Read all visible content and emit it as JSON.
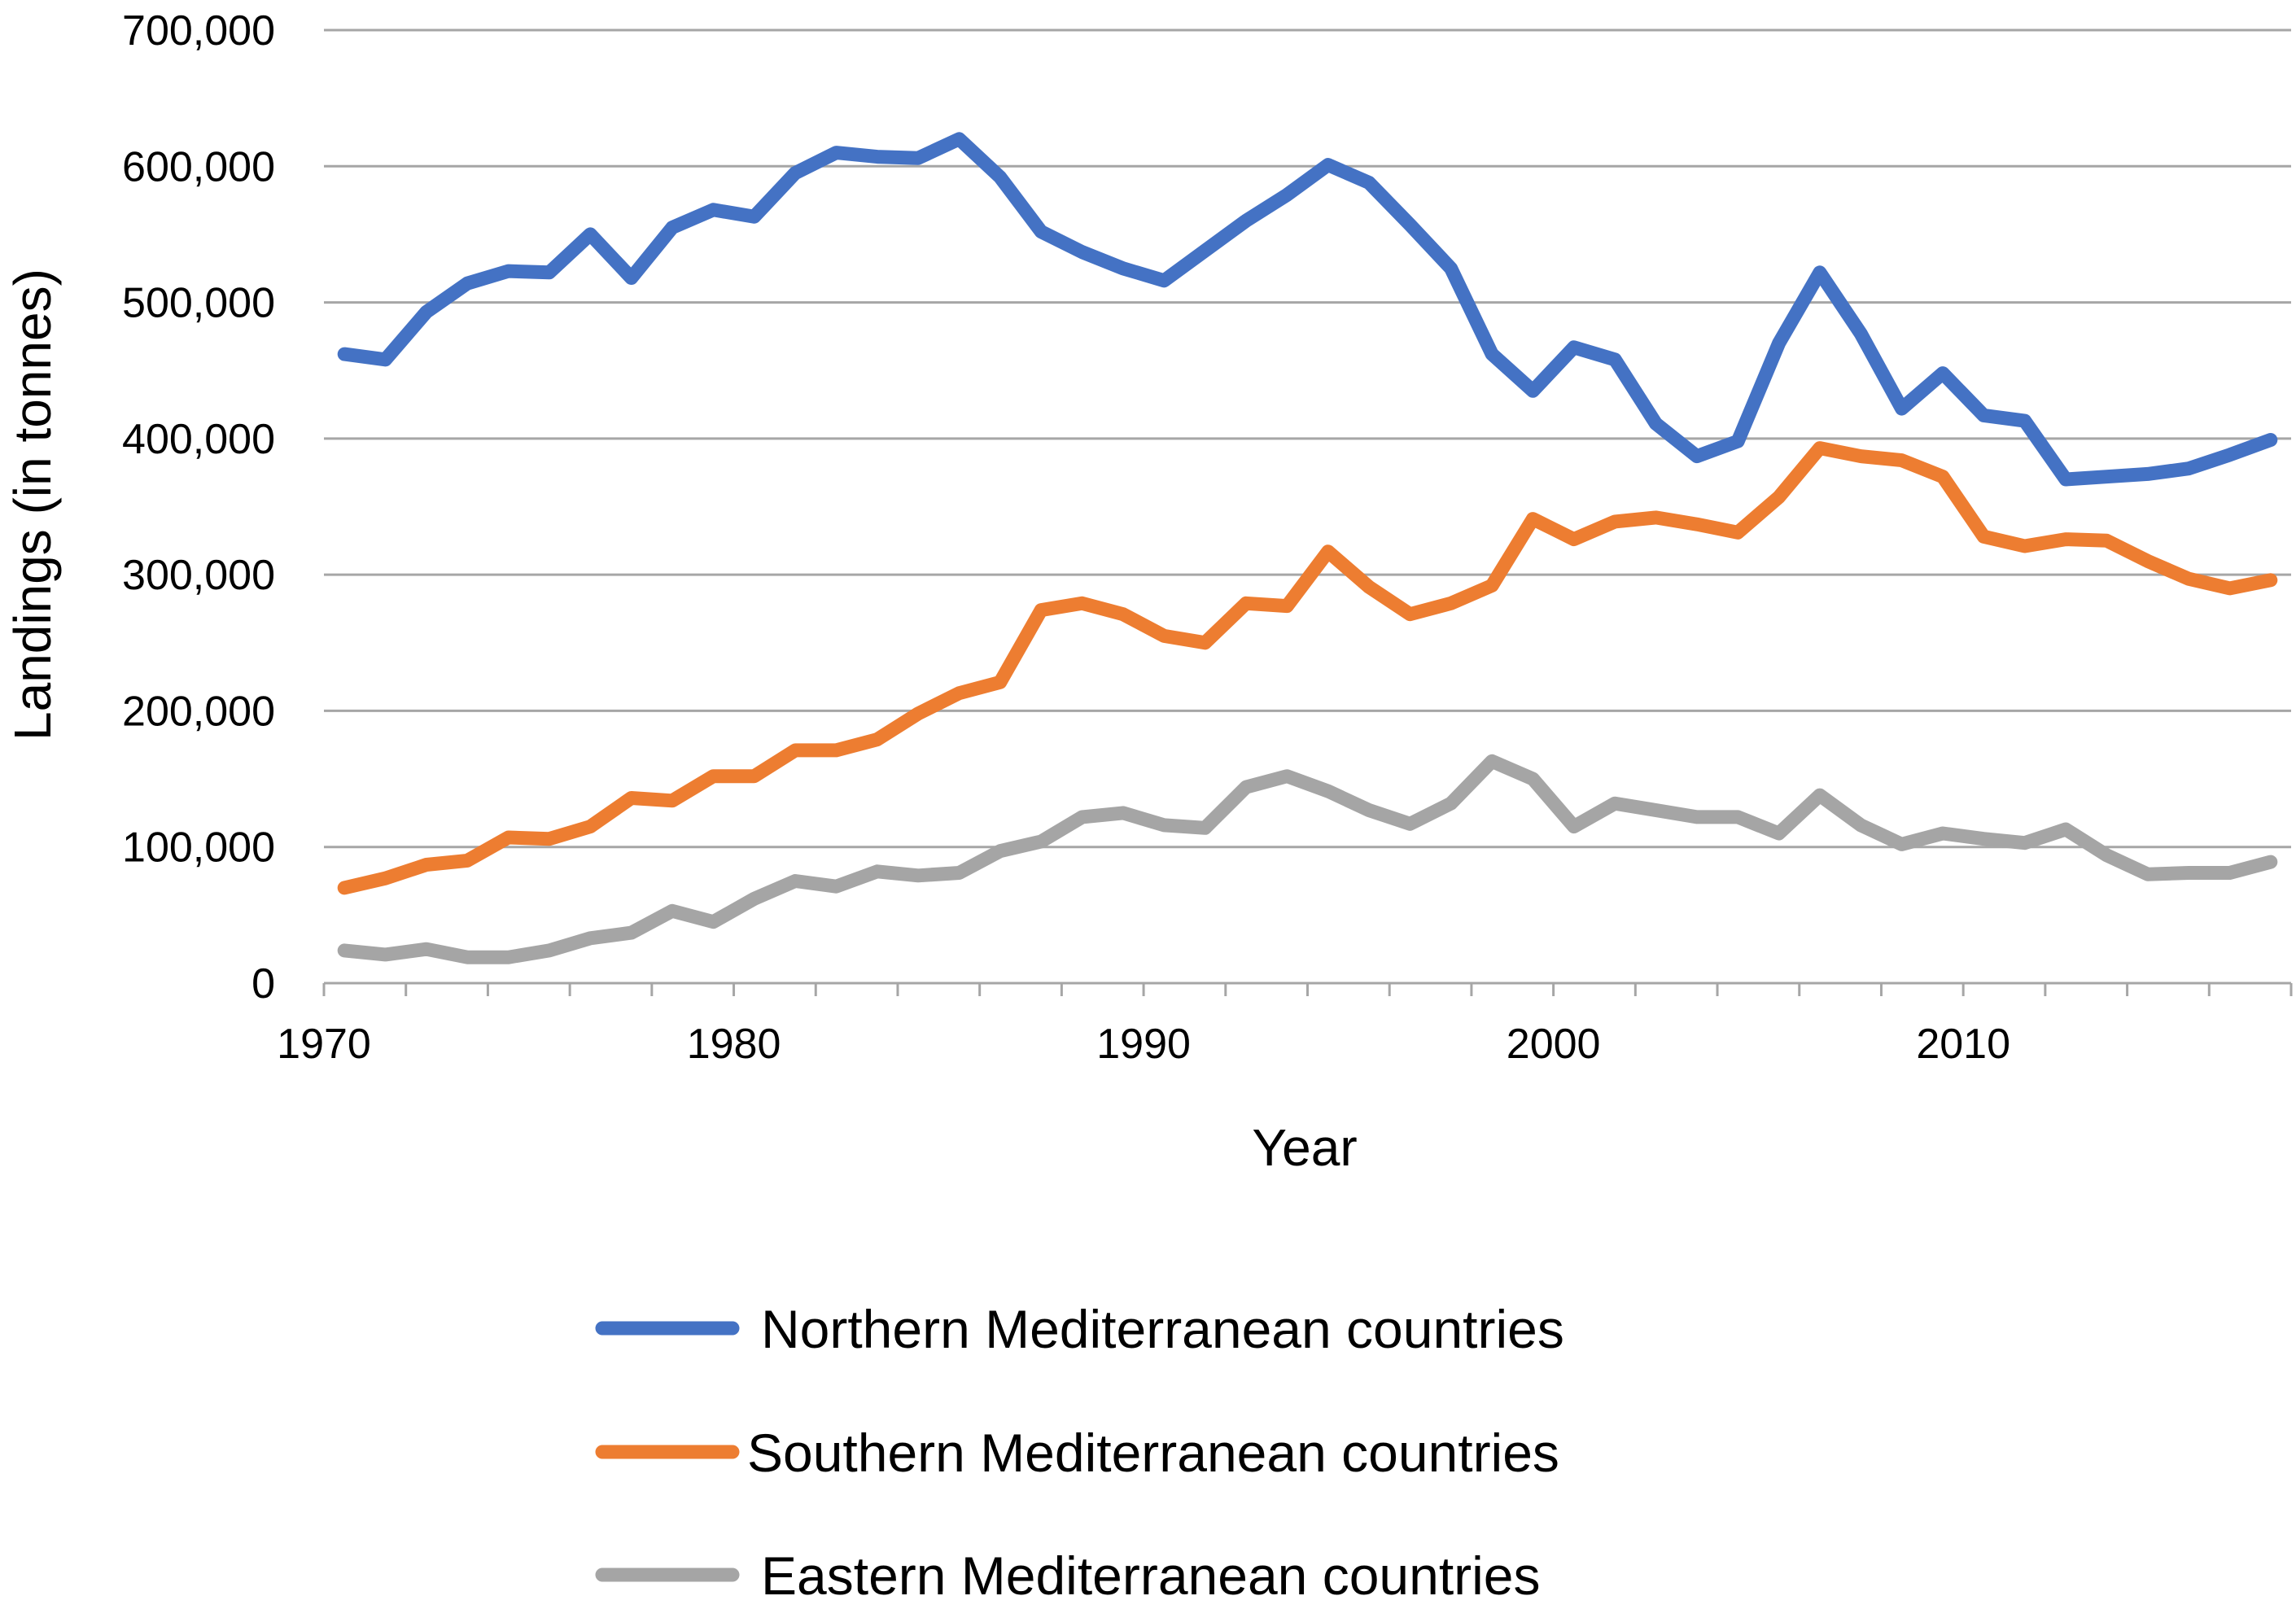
{
  "chart_data": {
    "type": "line",
    "title": "",
    "xlabel": "Year",
    "ylabel": "Landings (in tonnes)",
    "xlim": [
      1970,
      2018
    ],
    "ylim": [
      0,
      700000
    ],
    "grid": true,
    "legend_position": "bottom",
    "x_ticks": [
      {
        "value": 1970,
        "label": "1970"
      },
      {
        "value": 1980,
        "label": "1980"
      },
      {
        "value": 1990,
        "label": "1990"
      },
      {
        "value": 2000,
        "label": "2000"
      },
      {
        "value": 2010,
        "label": "2010"
      }
    ],
    "y_ticks": [
      {
        "value": 0,
        "label": "0"
      },
      {
        "value": 100000,
        "label": "100,000"
      },
      {
        "value": 200000,
        "label": "200,000"
      },
      {
        "value": 300000,
        "label": "300,000"
      },
      {
        "value": 400000,
        "label": "400,000"
      },
      {
        "value": 500000,
        "label": "500,000"
      },
      {
        "value": 600000,
        "label": "600,000"
      },
      {
        "value": 700000,
        "label": "700,000"
      }
    ],
    "x": [
      1970,
      1971,
      1972,
      1973,
      1974,
      1975,
      1976,
      1977,
      1978,
      1979,
      1980,
      1981,
      1982,
      1983,
      1984,
      1985,
      1986,
      1987,
      1988,
      1989,
      1990,
      1991,
      1992,
      1993,
      1994,
      1995,
      1996,
      1997,
      1998,
      1999,
      2000,
      2001,
      2002,
      2003,
      2004,
      2005,
      2006,
      2007,
      2008,
      2009,
      2010,
      2011,
      2012,
      2013,
      2014,
      2015,
      2016,
      2017
    ],
    "series": [
      {
        "name": "Northern Mediterranean countries",
        "color": "#4472C4",
        "values": [
          462000,
          458000,
          493000,
          514000,
          523000,
          522000,
          550000,
          518000,
          555000,
          568000,
          563000,
          595000,
          610000,
          607000,
          606000,
          620000,
          592000,
          552000,
          537000,
          525000,
          516000,
          538000,
          560000,
          579000,
          601000,
          588000,
          557000,
          525000,
          462000,
          435000,
          467000,
          458000,
          411000,
          387000,
          398000,
          470000,
          522000,
          477000,
          422000,
          448000,
          417000,
          413000,
          370000,
          372000,
          374000,
          378000,
          388000,
          399000
        ]
      },
      {
        "name": "Southern Mediterranean countries",
        "color": "#ED7D31",
        "values": [
          70000,
          77000,
          87000,
          90000,
          107000,
          106000,
          115000,
          136000,
          134000,
          152000,
          152000,
          171000,
          171000,
          179000,
          198000,
          213000,
          221000,
          274000,
          279000,
          271000,
          255000,
          250000,
          279000,
          277000,
          317000,
          291000,
          271000,
          279000,
          292000,
          341000,
          326000,
          339000,
          342000,
          337000,
          331000,
          357000,
          393000,
          387000,
          384000,
          372000,
          328000,
          321000,
          326000,
          325000,
          310000,
          297000,
          290000,
          296000
        ]
      },
      {
        "name": "Eastern Mediterranean countries",
        "color": "#A5A5A5",
        "values": [
          24000,
          21000,
          25000,
          19000,
          19000,
          24000,
          33000,
          37000,
          53000,
          45000,
          62000,
          75000,
          71000,
          82000,
          79000,
          81000,
          97000,
          104000,
          122000,
          125000,
          116000,
          114000,
          144000,
          152000,
          141000,
          127000,
          117000,
          132000,
          163000,
          150000,
          115000,
          132000,
          127000,
          122000,
          122000,
          110000,
          138000,
          116000,
          102000,
          110000,
          106000,
          103000,
          113000,
          94000,
          80000,
          81000,
          81000,
          89000
        ]
      }
    ]
  }
}
